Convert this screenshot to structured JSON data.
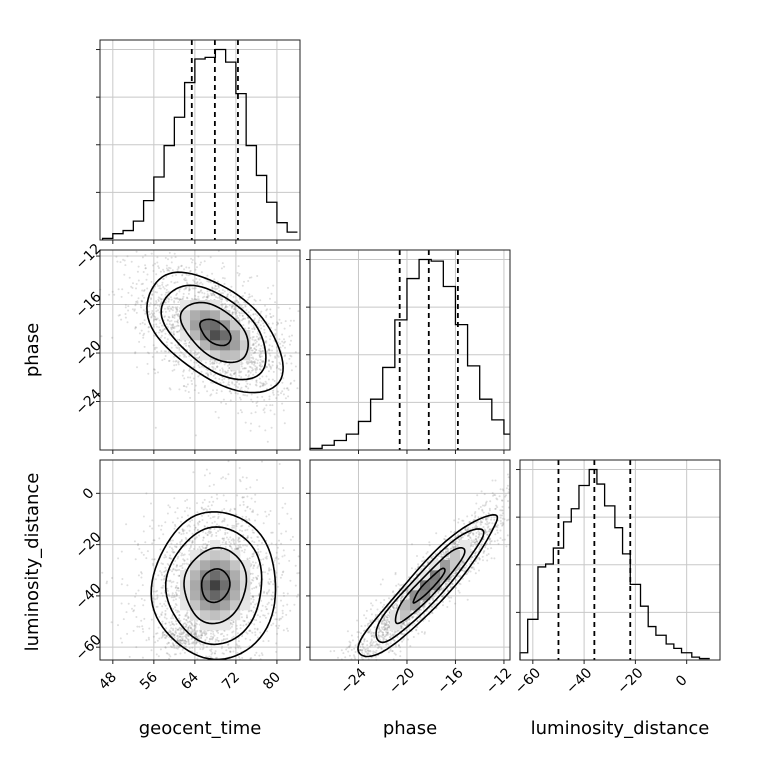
{
  "chart_data": {
    "type": "corner",
    "parameters": [
      "geocent_time",
      "phase",
      "luminosity_distance"
    ],
    "axis_labels": {
      "geocent_time": "geocent_time",
      "phase": "phase",
      "luminosity_distance": "luminosity_distance"
    },
    "ranges": {
      "geocent_time": [
        45.5,
        84.5
      ],
      "phase": [
        -28,
        -11.5
      ],
      "luminosity_distance": [
        -65,
        13
      ]
    },
    "ticks": {
      "geocent_time": [
        48,
        56,
        64,
        72,
        80
      ],
      "phase": [
        -24,
        -20,
        -16,
        -12
      ],
      "luminosity_distance": [
        -60,
        -40,
        -20,
        0
      ]
    },
    "grid": true,
    "histograms": {
      "geocent_time": {
        "edges": [
          46,
          48,
          50,
          52,
          54,
          56,
          58,
          60,
          62,
          64,
          66,
          68,
          70,
          72,
          74,
          76,
          78,
          80,
          82,
          84
        ],
        "counts": [
          1,
          4,
          6,
          12,
          25,
          40,
          60,
          78,
          100,
          115,
          116,
          121,
          113,
          93,
          60,
          41,
          24,
          11,
          5
        ]
      },
      "phase": {
        "edges": [
          -28,
          -27,
          -26,
          -25,
          -24,
          -23,
          -22,
          -21,
          -20,
          -19,
          -18,
          -17,
          -16,
          -15,
          -14,
          -13,
          -12,
          -11.5
        ],
        "counts": [
          1,
          3,
          6,
          10,
          18,
          32,
          52,
          82,
          108,
          120,
          119,
          103,
          79,
          53,
          32,
          19,
          10
        ]
      },
      "luminosity_distance": {
        "edges": [
          -65,
          -62,
          -58,
          -55,
          -52,
          -48,
          -45,
          -42,
          -38,
          -35,
          -32,
          -28,
          -25,
          -22,
          -18,
          -15,
          -12,
          -8,
          -5,
          -2,
          2,
          5,
          9
        ],
        "counts": [
          5,
          28,
          64,
          66,
          77,
          95,
          104,
          120,
          131,
          121,
          106,
          91,
          73,
          52,
          37,
          23,
          17,
          11,
          8,
          5,
          2,
          1
        ]
      }
    },
    "quantiles": {
      "geocent_time": [
        63.4,
        67.9,
        72.4
      ],
      "phase": [
        -20.6,
        -18.2,
        -15.8
      ],
      "luminosity_distance": [
        -50,
        -36,
        -22
      ]
    },
    "pairs": [
      {
        "x": "geocent_time",
        "y": "phase",
        "center": [
          68,
          -18.3
        ],
        "sd": [
          6,
          2.2
        ],
        "correlation": -0.5,
        "contour_levels": [
          0.5,
          1.1,
          1.7,
          2.2
        ]
      },
      {
        "x": "geocent_time",
        "y": "luminosity_distance",
        "center": [
          68,
          -36
        ],
        "sd": [
          5.5,
          13
        ],
        "correlation": 0.05,
        "contour_levels": [
          0.5,
          1.1,
          1.7,
          2.2
        ],
        "secondary_mode": [
          62,
          -56
        ]
      },
      {
        "x": "phase",
        "y": "luminosity_distance",
        "center": [
          -18.2,
          -36
        ],
        "sd": [
          2.6,
          13
        ],
        "correlation": 0.93,
        "contour_levels": [
          0.5,
          1.1,
          1.7,
          2.2
        ]
      }
    ]
  }
}
